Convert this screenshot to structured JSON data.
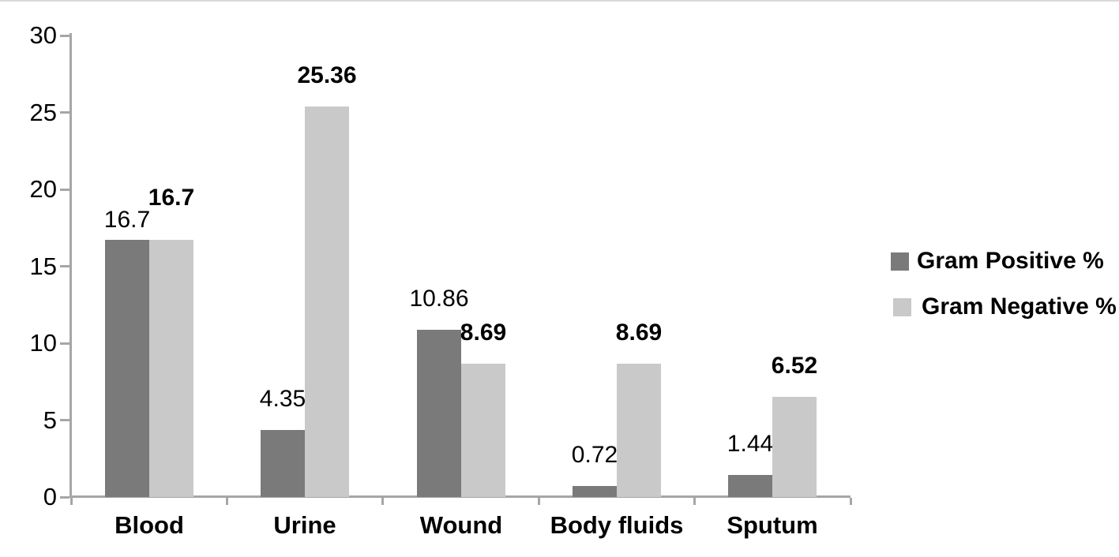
{
  "chart_data": {
    "type": "bar",
    "categories": [
      "Blood",
      "Urine",
      "Wound",
      "Body fluids",
      "Sputum"
    ],
    "series": [
      {
        "name": "Gram Positive %",
        "color": "#7a7a7a",
        "bold_value_labels": false,
        "values": [
          16.7,
          4.35,
          10.86,
          0.72,
          1.44
        ]
      },
      {
        "name": "Gram Negative %",
        "color": "#c9c9c9",
        "bold_value_labels": true,
        "values": [
          16.7,
          25.36,
          8.69,
          8.69,
          6.52
        ]
      }
    ],
    "value_labels_shown": true,
    "y_ticks": [
      0,
      5,
      10,
      15,
      20,
      25,
      30
    ],
    "ylim": [
      0,
      30
    ],
    "grid": false,
    "legend_position": "right",
    "axis_color": "#a6a6a6",
    "text_color": "#000000"
  }
}
